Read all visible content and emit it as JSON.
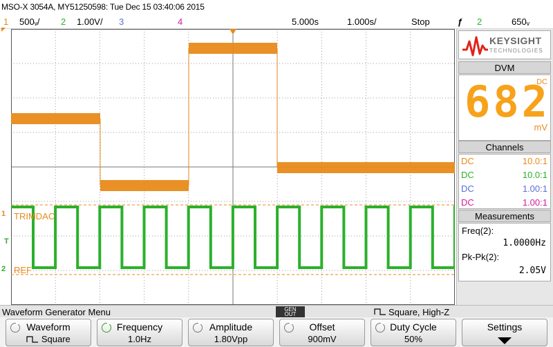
{
  "title": "MSO-X 3054A, MY51250598: Tue Dec 15 03:40:06 2015",
  "status": {
    "ch1_num": "1",
    "ch1_scale": "500ᵥ/",
    "ch2_num": "2",
    "ch2_scale": "1.00V/",
    "ch3_num": "3",
    "ch4_num": "4",
    "time_delay": "5.000s",
    "time_scale": "1.000s/",
    "run_state": "Stop",
    "trigger_icon": "ƒ",
    "trigger_source": "2",
    "trigger_level": "650ᵥ"
  },
  "colors": {
    "ch1": "#f7a21b",
    "ch2": "#2bb02b",
    "ch3": "#5a6fd6",
    "ch4": "#d21a9a",
    "brand": "#e2231a"
  },
  "plot": {
    "ch1_label": "TRIMDAC",
    "ch2_label": "REF",
    "marker_ch1": "1",
    "marker_trigger": "T",
    "marker_ch2": "2"
  },
  "side_panel": {
    "brand_name": "KEYSIGHT",
    "brand_sub": "TECHNOLOGIES",
    "dvm_title": "DVM",
    "dvm_value": "682",
    "dvm_coupling": "DC",
    "dvm_unit": "mV",
    "channels_title": "Channels",
    "channels": [
      {
        "coupling": "DC",
        "probe": "10.0:1"
      },
      {
        "coupling": "DC",
        "probe": "10.0:1"
      },
      {
        "coupling": "DC",
        "probe": "1.00:1"
      },
      {
        "coupling": "DC",
        "probe": "1.00:1"
      }
    ],
    "measurements_title": "Measurements",
    "measurements": [
      {
        "label": "Freq(2):",
        "value": "1.0000Hz"
      },
      {
        "label": "Pk-Pk(2):",
        "value": "2.05V"
      }
    ]
  },
  "menu": {
    "title": "Waveform Generator Menu",
    "gen_out_line1": "GEN",
    "gen_out_line2": "OUT",
    "waveform_desc": "Square, High-Z"
  },
  "softkeys": [
    {
      "label": "Waveform",
      "value": "Square"
    },
    {
      "label": "Frequency",
      "value": "1.0Hz"
    },
    {
      "label": "Amplitude",
      "value": "1.80Vpp"
    },
    {
      "label": "Offset",
      "value": "900mV"
    },
    {
      "label": "Duty Cycle",
      "value": "50%"
    },
    {
      "label": "Settings",
      "value": ""
    }
  ]
}
